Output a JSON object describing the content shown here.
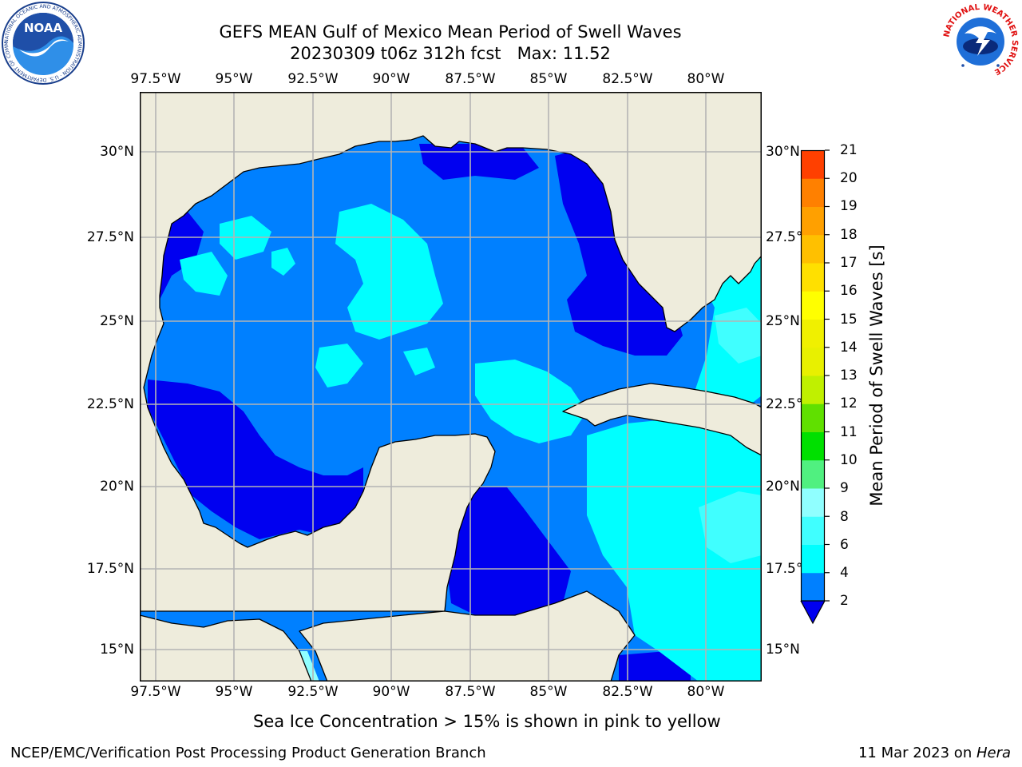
{
  "header": {
    "title_line1": "GEFS MEAN Gulf of Mexico Mean Period of Swell Waves",
    "title_line2": "20230309 t06z 312h fcst   Max: 11.52"
  },
  "logos": {
    "noaa": {
      "text": "NOAA",
      "ring_text": "NATIONAL OCEANIC AND ATMOSPHERIC ADMINISTRATION · U.S. DEPARTMENT OF COMMERCE"
    },
    "nws": {
      "ring_text": "NATIONAL WEATHER SERVICE"
    }
  },
  "map": {
    "lon_ticks": [
      "97.5°W",
      "95°W",
      "92.5°W",
      "90°W",
      "87.5°W",
      "85°W",
      "82.5°W",
      "80°W"
    ],
    "lat_ticks_left": [
      "30°N",
      "27.5°N",
      "25°N",
      "22.5°N",
      "20°N",
      "17.5°N",
      "15°N"
    ],
    "lat_ticks_right": [
      "30°N",
      "27.5°N",
      "25°N",
      "22.5°N",
      "20°N",
      "17.5°N",
      "15°N"
    ],
    "colors": {
      "land": "#eeecdc",
      "grid": "#b4b4b4",
      "coast": "#000000",
      "level_2_4": "#0080ff",
      "level_under_2": "#0000f0",
      "level_4_6": "#00ffff",
      "level_6_8": "#40ffff",
      "level_8_9": "#90ffff",
      "level_9_10": "#50f080",
      "level_10_11": "#00e000"
    }
  },
  "colorbar": {
    "title": "Mean Period of Swell Waves [s]",
    "labels": [
      "2",
      "4",
      "6",
      "8",
      "9",
      "10",
      "11",
      "12",
      "13",
      "14",
      "15",
      "16",
      "17",
      "18",
      "19",
      "20",
      "21"
    ],
    "colors": [
      "#0080ff",
      "#00ffff",
      "#40ffff",
      "#90ffff",
      "#50f080",
      "#00e000",
      "#60e000",
      "#c0f000",
      "#e8f000",
      "#f0f000",
      "#ffff00",
      "#ffe000",
      "#ffc000",
      "#ffa000",
      "#ff8000",
      "#ff4000",
      "#ff1000",
      "#ff0000"
    ],
    "extend_color": "#0000f0"
  },
  "footer": {
    "sea_ice_note": "Sea Ice Concentration > 15% is shown in pink to yellow",
    "branch": "NCEP/EMC/Verification Post Processing Product Generation Branch",
    "date": "11 Mar 2023 on ",
    "host": "Hera"
  }
}
